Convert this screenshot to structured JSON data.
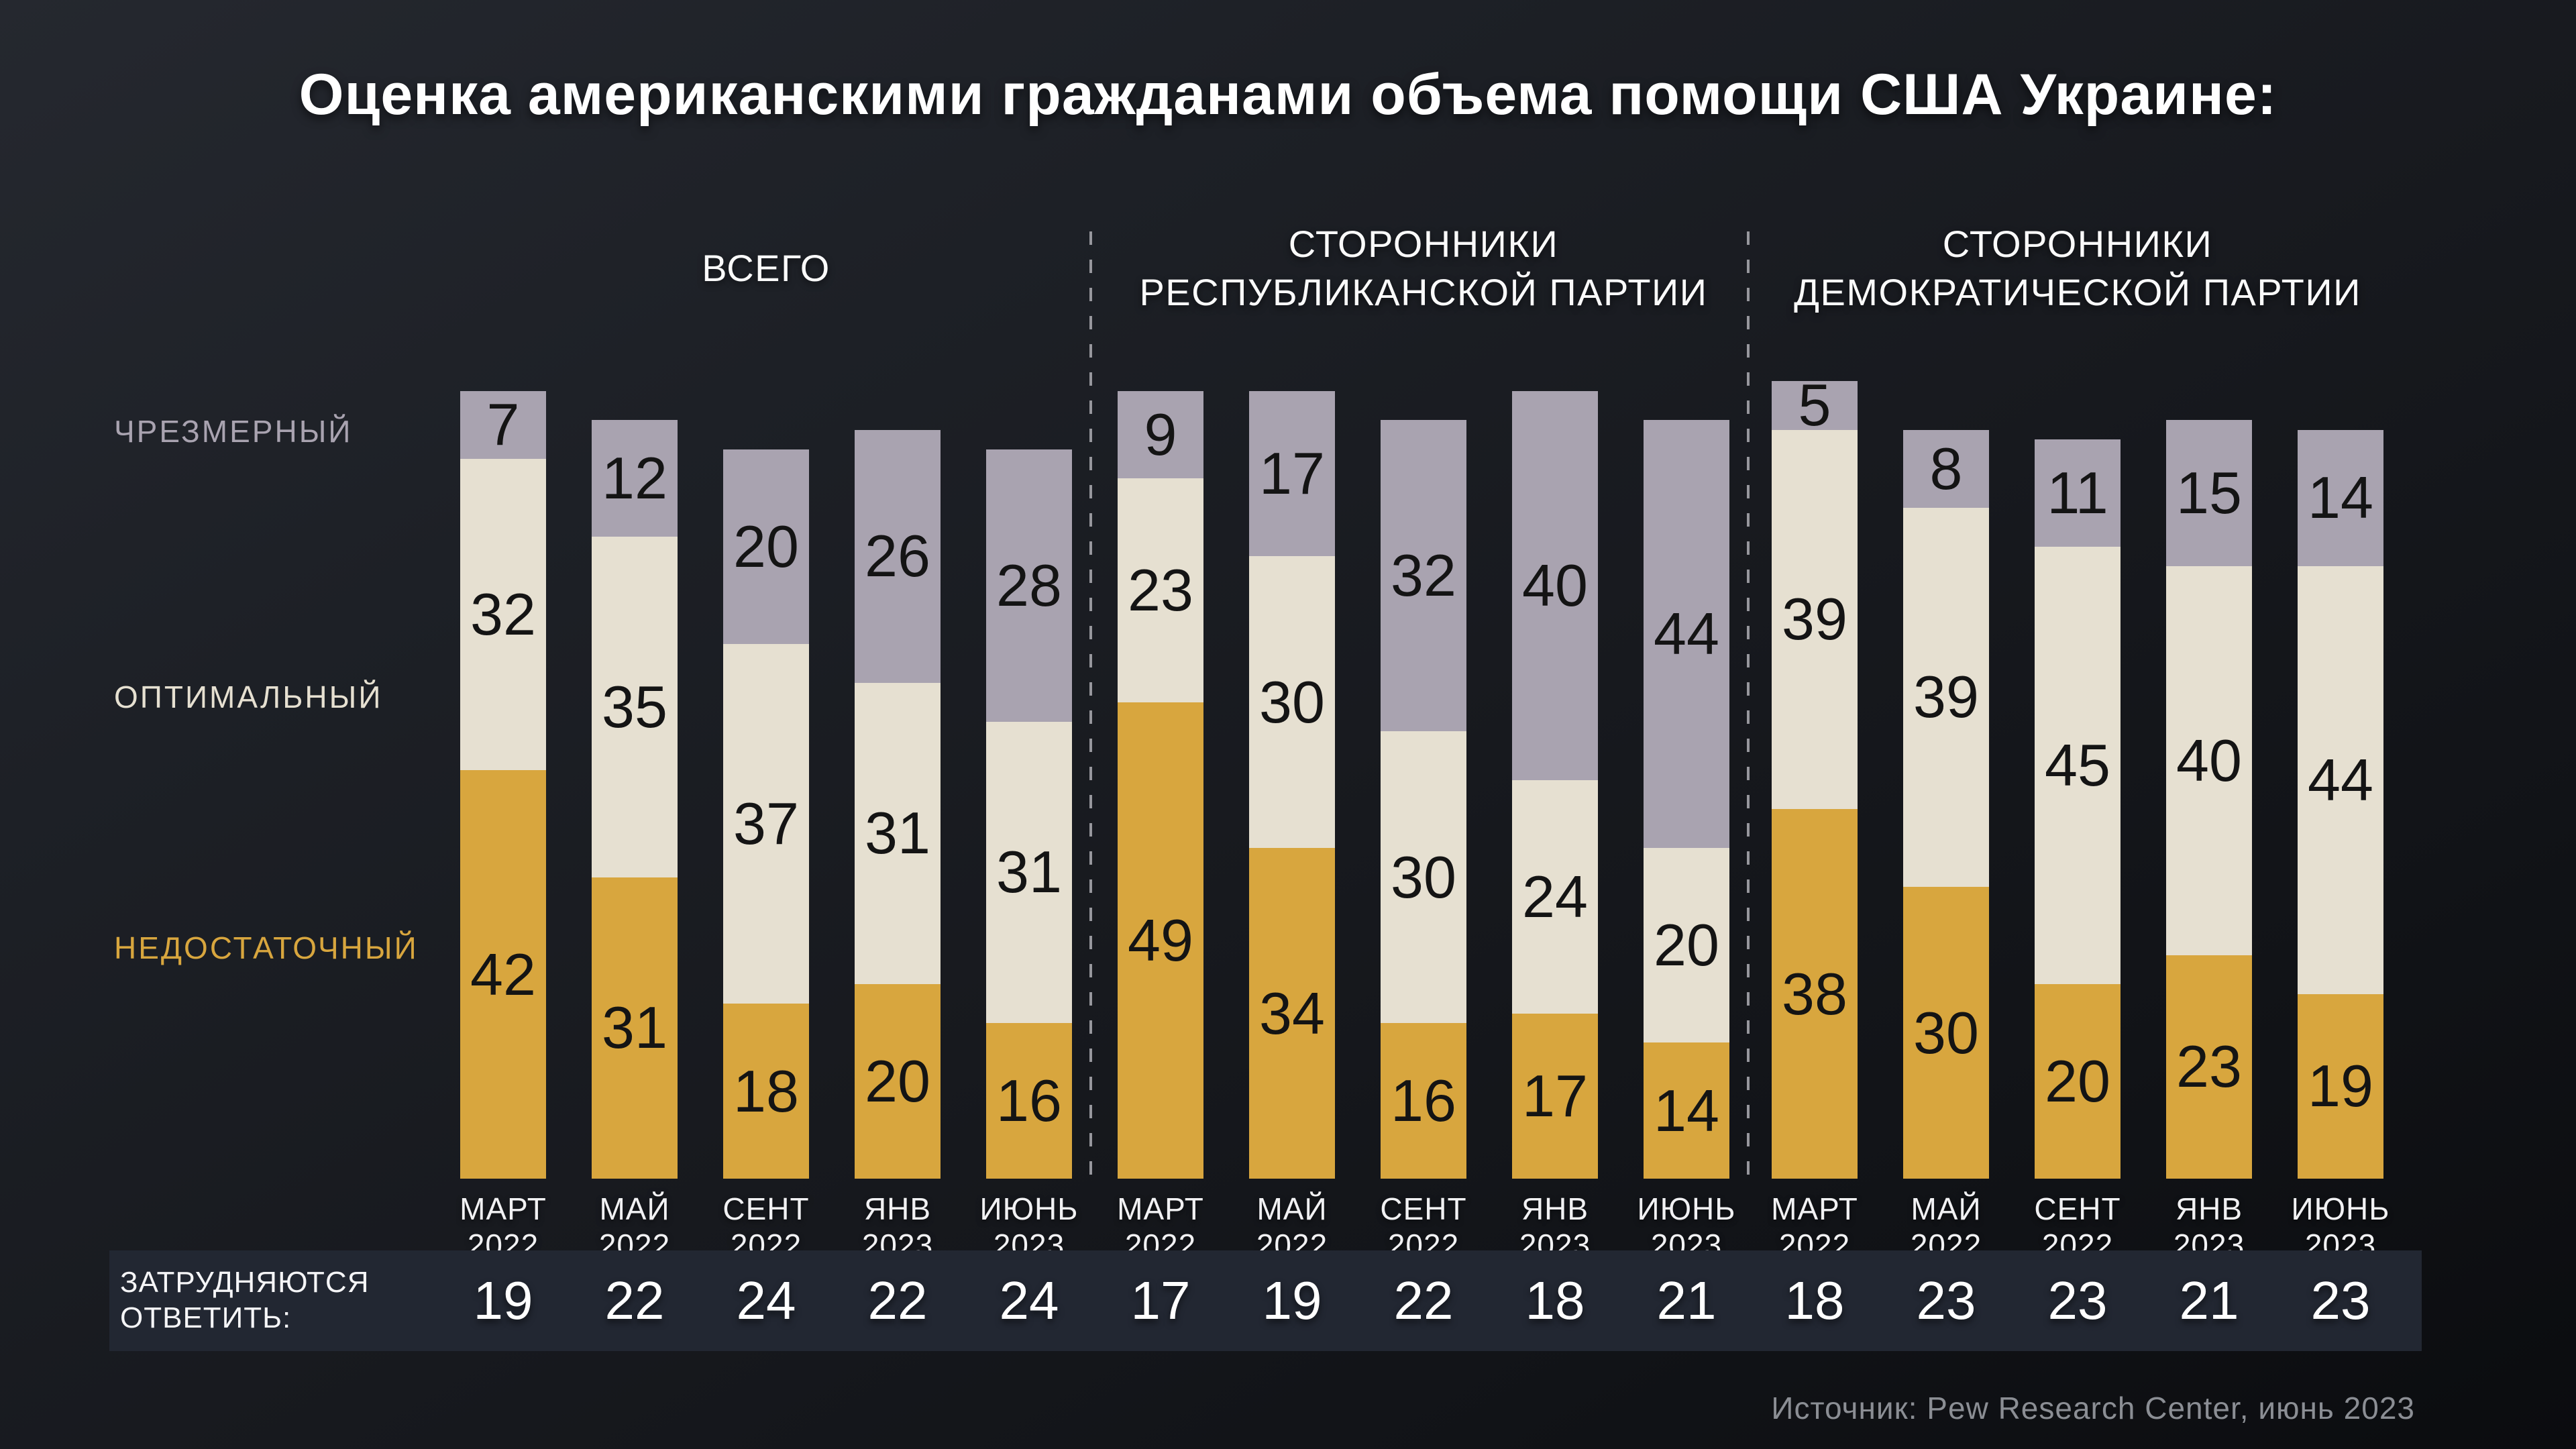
{
  "title": "Оценка американскими гражданами объема помощи США Украине:",
  "source": "Источник: Pew Research Center, июнь 2023",
  "categories_legend": [
    {
      "id": "excessive",
      "label": "ЧРЕЗМЕРНЫЙ",
      "color": "#a9a3b0"
    },
    {
      "id": "optimal",
      "label": "ОПТИМАЛЬНЫЙ",
      "color": "#e6e0d1"
    },
    {
      "id": "insufficient",
      "label": "НЕДОСТАТОЧНЫЙ",
      "color": "#d8a63e"
    }
  ],
  "footer_label_lines": [
    "ЗАТРУДНЯЮТСЯ",
    "ОТВЕТИТЬ:"
  ],
  "chart_data": {
    "type": "bar",
    "stacked": true,
    "values_are": "percent",
    "legend_position": "left",
    "series_order_top_to_bottom": [
      "ЧРЕЗМЕРНЫЙ",
      "ОПТИМАЛЬНЫЙ",
      "НЕДОСТАТОЧНЫЙ"
    ],
    "footer_series_name": "ЗАТРУДНЯЮТСЯ ОТВЕТИТЬ",
    "groups": [
      {
        "header_lines": [
          "ВСЕГО"
        ],
        "bars": [
          {
            "month_lines": [
              "МАРТ",
              "2022"
            ],
            "excessive": 7,
            "optimal": 32,
            "insufficient": 42,
            "undecided": 19
          },
          {
            "month_lines": [
              "МАЙ",
              "2022"
            ],
            "excessive": 12,
            "optimal": 35,
            "insufficient": 31,
            "undecided": 22
          },
          {
            "month_lines": [
              "СЕНТ",
              "2022"
            ],
            "excessive": 20,
            "optimal": 37,
            "insufficient": 18,
            "undecided": 24
          },
          {
            "month_lines": [
              "ЯНВ",
              "2023"
            ],
            "excessive": 26,
            "optimal": 31,
            "insufficient": 20,
            "undecided": 22
          },
          {
            "month_lines": [
              "ИЮНЬ",
              "2023"
            ],
            "excessive": 28,
            "optimal": 31,
            "insufficient": 16,
            "undecided": 24
          }
        ]
      },
      {
        "header_lines": [
          "СТОРОННИКИ",
          "РЕСПУБЛИКАНСКОЙ ПАРТИИ"
        ],
        "bars": [
          {
            "month_lines": [
              "МАРТ",
              "2022"
            ],
            "excessive": 9,
            "optimal": 23,
            "insufficient": 49,
            "undecided": 17
          },
          {
            "month_lines": [
              "МАЙ",
              "2022"
            ],
            "excessive": 17,
            "optimal": 30,
            "insufficient": 34,
            "undecided": 19
          },
          {
            "month_lines": [
              "СЕНТ",
              "2022"
            ],
            "excessive": 32,
            "optimal": 30,
            "insufficient": 16,
            "undecided": 22
          },
          {
            "month_lines": [
              "ЯНВ",
              "2023"
            ],
            "excessive": 40,
            "optimal": 24,
            "insufficient": 17,
            "undecided": 18
          },
          {
            "month_lines": [
              "ИЮНЬ",
              "2023"
            ],
            "excessive": 44,
            "optimal": 20,
            "insufficient": 14,
            "undecided": 21
          }
        ]
      },
      {
        "header_lines": [
          "СТОРОННИКИ",
          "ДЕМОКРАТИЧЕСКОЙ ПАРТИИ"
        ],
        "bars": [
          {
            "month_lines": [
              "МАРТ",
              "2022"
            ],
            "excessive": 5,
            "optimal": 39,
            "insufficient": 38,
            "undecided": 18
          },
          {
            "month_lines": [
              "МАЙ",
              "2022"
            ],
            "excessive": 8,
            "optimal": 39,
            "insufficient": 30,
            "undecided": 23
          },
          {
            "month_lines": [
              "СЕНТ",
              "2022"
            ],
            "excessive": 11,
            "optimal": 45,
            "insufficient": 20,
            "undecided": 23
          },
          {
            "month_lines": [
              "ЯНВ",
              "2023"
            ],
            "excessive": 15,
            "optimal": 40,
            "insufficient": 23,
            "undecided": 21
          },
          {
            "month_lines": [
              "ИЮНЬ",
              "2023"
            ],
            "excessive": 14,
            "optimal": 44,
            "insufficient": 19,
            "undecided": 23
          }
        ]
      }
    ]
  }
}
